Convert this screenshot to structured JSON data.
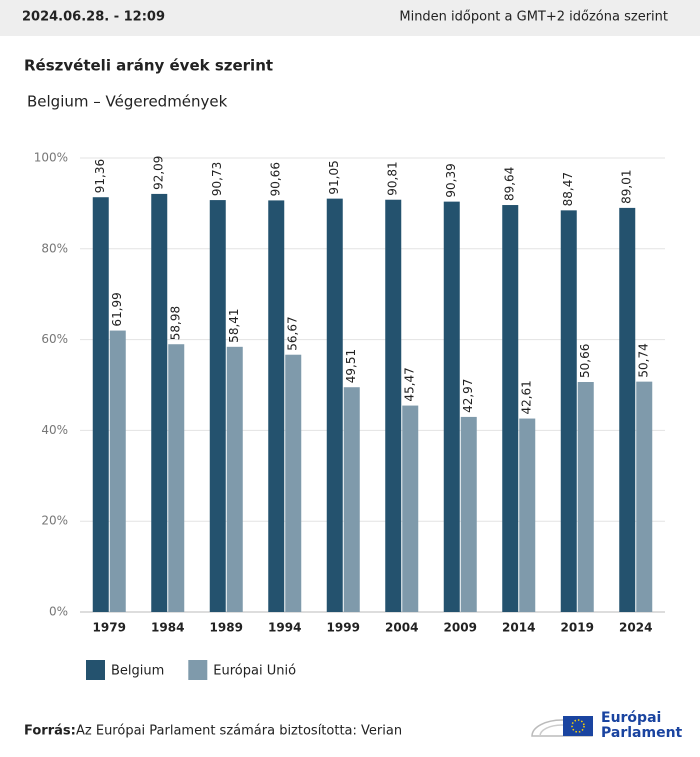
{
  "header": {
    "date": "2024.06.28. - 12:09",
    "timezone": "Minden időpont a GMT+2 időzóna szerint"
  },
  "chart_data": {
    "type": "bar",
    "title": "Részvételi arány évek szerint",
    "subtitle": "Belgium – Végeredmények",
    "categories": [
      "1979",
      "1984",
      "1989",
      "1994",
      "1999",
      "2004",
      "2009",
      "2014",
      "2019",
      "2024"
    ],
    "series": [
      {
        "name": "Belgium",
        "color": "#24526e",
        "values": [
          91.36,
          92.09,
          90.73,
          90.66,
          91.05,
          90.81,
          90.39,
          89.64,
          88.47,
          89.01
        ],
        "value_labels": [
          "91,36",
          "92,09",
          "90,73",
          "90,66",
          "91,05",
          "90,81",
          "90,39",
          "89,64",
          "88,47",
          "89,01"
        ]
      },
      {
        "name": "Európai Unió",
        "color": "#7f9aab",
        "values": [
          61.99,
          58.98,
          58.41,
          56.67,
          49.51,
          45.47,
          42.97,
          42.61,
          50.66,
          50.74
        ],
        "value_labels": [
          "61,99",
          "58,98",
          "58,41",
          "56,67",
          "49,51",
          "45,47",
          "42,97",
          "42,61",
          "50,66",
          "50,74"
        ]
      }
    ],
    "ylim": [
      0,
      100
    ],
    "yticks": [
      {
        "value": 0,
        "label": "0%"
      },
      {
        "value": 20,
        "label": "20%"
      },
      {
        "value": 40,
        "label": "40%"
      },
      {
        "value": 60,
        "label": "60%"
      },
      {
        "value": 80,
        "label": "80%"
      },
      {
        "value": 100,
        "label": "100%"
      }
    ],
    "grid": true
  },
  "footer": {
    "source_label": "Forrás:",
    "source": "Az Európai Parlament számára biztosította: Verian"
  },
  "logo": {
    "line1": "Európai",
    "line2": "Parlament"
  }
}
